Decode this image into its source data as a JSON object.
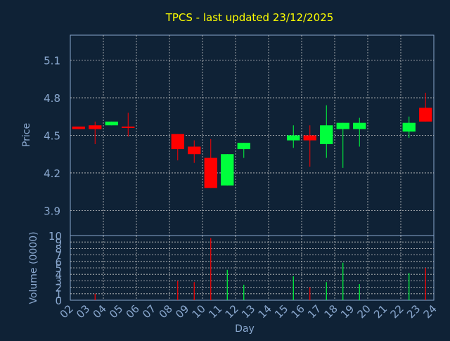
{
  "chart_data": [
    {
      "type": "candlestick",
      "title": "TPCS - last updated 23/12/2025",
      "ylabel": "Price",
      "ylim": [
        3.7,
        5.3
      ],
      "yticks": [
        "5.1",
        "4.8",
        "4.5",
        "4.2",
        "3.9"
      ],
      "ytick_values": [
        5.1,
        4.8,
        4.5,
        4.2,
        3.9
      ],
      "grid": true,
      "colors": {
        "background": "#0f2236",
        "up": "#00ff3c",
        "down": "#ff0000",
        "title": "#ffff00",
        "axis_text": "#8aa8cf",
        "grid": "#c8c8c8"
      },
      "x_labels": [
        "02",
        "03",
        "04",
        "05",
        "06",
        "07",
        "08",
        "09",
        "10",
        "11",
        "12",
        "13",
        "14",
        "15",
        "16",
        "17",
        "18",
        "19",
        "20",
        "21",
        "22",
        "23",
        "24"
      ],
      "candles": [
        {
          "day": "02",
          "open": 4.57,
          "high": 4.57,
          "low": 4.55,
          "close": 4.55
        },
        {
          "day": "03",
          "open": 4.58,
          "high": 4.61,
          "low": 4.43,
          "close": 4.55
        },
        {
          "day": "04",
          "open": 4.58,
          "high": 4.61,
          "low": 4.58,
          "close": 4.61
        },
        {
          "day": "05",
          "open": 4.57,
          "high": 4.68,
          "low": 4.49,
          "close": 4.56
        },
        {
          "day": "08",
          "open": 4.51,
          "high": 4.51,
          "low": 4.3,
          "close": 4.39
        },
        {
          "day": "09",
          "open": 4.41,
          "high": 4.46,
          "low": 4.28,
          "close": 4.35
        },
        {
          "day": "10",
          "open": 4.32,
          "high": 4.47,
          "low": 4.08,
          "close": 4.08
        },
        {
          "day": "11",
          "open": 4.1,
          "high": 4.35,
          "low": 4.1,
          "close": 4.35
        },
        {
          "day": "12",
          "open": 4.39,
          "high": 4.44,
          "low": 4.32,
          "close": 4.44
        },
        {
          "day": "15",
          "open": 4.46,
          "high": 4.58,
          "low": 4.4,
          "close": 4.5
        },
        {
          "day": "16",
          "open": 4.5,
          "high": 4.58,
          "low": 4.25,
          "close": 4.46
        },
        {
          "day": "17",
          "open": 4.43,
          "high": 4.74,
          "low": 4.32,
          "close": 4.58
        },
        {
          "day": "18",
          "open": 4.55,
          "high": 4.6,
          "low": 4.24,
          "close": 4.6
        },
        {
          "day": "19",
          "open": 4.55,
          "high": 4.64,
          "low": 4.41,
          "close": 4.6
        },
        {
          "day": "22",
          "open": 4.53,
          "high": 4.65,
          "low": 4.48,
          "close": 4.6
        },
        {
          "day": "23",
          "open": 4.72,
          "high": 4.84,
          "low": 4.61,
          "close": 4.61
        }
      ]
    },
    {
      "type": "bar",
      "ylabel": "Volume (0000)",
      "xlabel": "Day",
      "ylim": [
        0,
        10
      ],
      "yticks": [
        "0",
        "1",
        "2",
        "3",
        "4",
        "5",
        "6",
        "7",
        "8",
        "9",
        "10"
      ],
      "ytick_values": [
        0,
        1,
        2,
        3,
        4,
        5,
        6,
        7,
        8,
        9,
        10
      ],
      "x_labels": [
        "02",
        "03",
        "04",
        "05",
        "06",
        "07",
        "08",
        "09",
        "10",
        "11",
        "12",
        "13",
        "14",
        "15",
        "16",
        "17",
        "18",
        "19",
        "20",
        "21",
        "22",
        "23",
        "24"
      ],
      "bars": [
        {
          "day": "03",
          "value": 1.0,
          "direction": "down"
        },
        {
          "day": "08",
          "value": 3.0,
          "direction": "down"
        },
        {
          "day": "09",
          "value": 2.8,
          "direction": "down"
        },
        {
          "day": "10",
          "value": 9.6,
          "direction": "down"
        },
        {
          "day": "11",
          "value": 4.7,
          "direction": "up"
        },
        {
          "day": "12",
          "value": 2.4,
          "direction": "up"
        },
        {
          "day": "15",
          "value": 3.7,
          "direction": "up"
        },
        {
          "day": "16",
          "value": 2.0,
          "direction": "down"
        },
        {
          "day": "17",
          "value": 2.8,
          "direction": "up"
        },
        {
          "day": "18",
          "value": 5.8,
          "direction": "up"
        },
        {
          "day": "19",
          "value": 2.5,
          "direction": "up"
        },
        {
          "day": "22",
          "value": 4.2,
          "direction": "up"
        },
        {
          "day": "23",
          "value": 5.0,
          "direction": "down"
        }
      ]
    }
  ]
}
